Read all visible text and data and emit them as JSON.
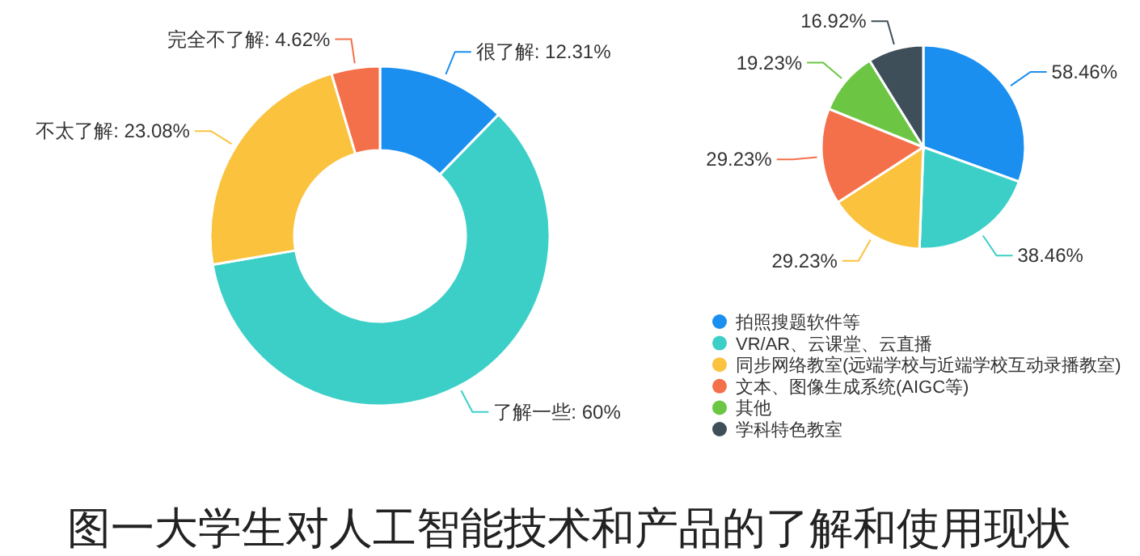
{
  "chart_data": [
    {
      "type": "donut",
      "categories": [
        "很了解",
        "了解一些",
        "不太了解",
        "完全不了解"
      ],
      "values": [
        12.31,
        60,
        23.08,
        4.62
      ],
      "colors": [
        "#1a8ff0",
        "#3ccfc8",
        "#fbc23e",
        "#f4704a"
      ],
      "value_labels": [
        ": 12.31%",
        ": 60%",
        ": 23.08%",
        ": 4.62%"
      ],
      "legend": false,
      "annotations": [
        "图一大学生对人工智能技术和产品的了解和使用现状"
      ]
    },
    {
      "type": "pie",
      "categories": [
        "拍照搜题软件等",
        "VR/AR、云课堂、云直播",
        "同步网络教室(远端学校与近端学校互动录播教室)",
        "文本、图像生成系统(AIGC等)",
        "其他",
        "学科特色教室"
      ],
      "values": [
        58.46,
        38.46,
        29.23,
        29.23,
        19.23,
        16.92
      ],
      "colors": [
        "#1a8ff0",
        "#3ccfc8",
        "#fbc23e",
        "#f4704a",
        "#6cc644",
        "#3e4f5a"
      ],
      "value_labels": [
        "58.46%",
        "38.46%",
        "29.23%",
        "29.23%",
        "19.23%",
        "16.92%"
      ],
      "legend": "bottom"
    }
  ]
}
